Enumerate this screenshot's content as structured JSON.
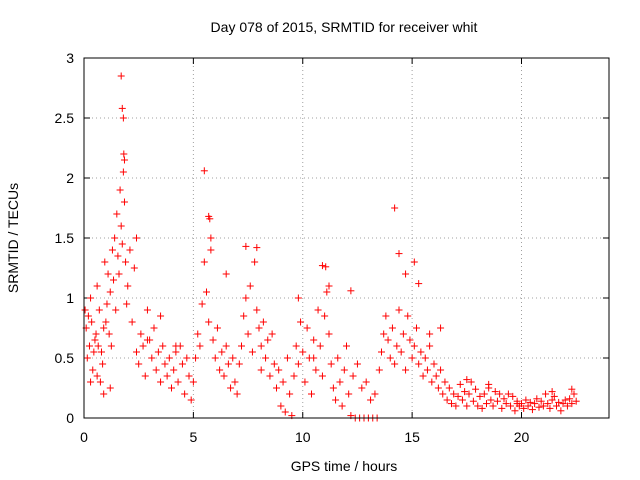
{
  "chart_data": {
    "type": "scatter",
    "title": "Day 078 of 2015, SRMTID for receiver whit",
    "xlabel": "GPS time / hours",
    "ylabel": "SRMTID / TECUs",
    "xlim": [
      0,
      24
    ],
    "ylim": [
      0,
      3
    ],
    "xticks": [
      0,
      5,
      10,
      15,
      20
    ],
    "xtick_labels": [
      "0",
      "5",
      "10",
      "15",
      "20"
    ],
    "yticks": [
      0,
      0.5,
      1,
      1.5,
      2,
      2.5,
      3
    ],
    "ytick_labels": [
      "0",
      "0.5",
      "1",
      "1.5",
      "2",
      "2.5",
      "3"
    ],
    "grid": true,
    "marker": "+",
    "color": "#ff0000",
    "series": [
      {
        "name": "SRMTID",
        "x": [
          0.05,
          0.1,
          0.15,
          0.2,
          0.25,
          0.3,
          0.35,
          0.4,
          0.45,
          0.5,
          0.55,
          0.6,
          0.65,
          0.7,
          0.75,
          0.8,
          0.85,
          0.9,
          0.95,
          1.0,
          1.05,
          1.1,
          1.15,
          1.2,
          1.25,
          1.3,
          1.35,
          1.4,
          1.45,
          1.5,
          1.55,
          1.6,
          1.65,
          1.7,
          1.75,
          1.8,
          1.85,
          1.9,
          1.95,
          2.0,
          2.1,
          2.2,
          2.3,
          2.4,
          2.5,
          2.6,
          2.7,
          2.8,
          2.9,
          3.0,
          3.1,
          3.2,
          3.3,
          3.4,
          3.5,
          3.6,
          3.7,
          3.8,
          3.9,
          4.0,
          4.1,
          4.2,
          4.3,
          4.4,
          4.5,
          4.6,
          4.7,
          4.8,
          4.9,
          5.0,
          5.1,
          5.2,
          5.3,
          5.4,
          5.5,
          5.6,
          5.7,
          5.8,
          5.9,
          6.0,
          6.1,
          6.2,
          6.3,
          6.4,
          6.5,
          6.6,
          6.7,
          6.8,
          6.9,
          7.0,
          7.1,
          7.2,
          7.3,
          7.4,
          7.5,
          7.6,
          7.7,
          7.8,
          7.9,
          8.0,
          8.1,
          8.2,
          8.3,
          8.4,
          8.5,
          8.6,
          8.7,
          8.8,
          8.9,
          9.0,
          9.1,
          9.2,
          9.3,
          9.4,
          9.5,
          9.6,
          9.7,
          9.8,
          9.9,
          10.0,
          10.1,
          10.2,
          10.3,
          10.4,
          10.5,
          10.6,
          10.7,
          10.8,
          10.9,
          11.0,
          11.1,
          11.2,
          11.3,
          11.4,
          11.5,
          11.6,
          11.7,
          11.8,
          11.9,
          12.0,
          12.1,
          12.2,
          12.3,
          12.4,
          12.5,
          12.6,
          12.7,
          12.8,
          12.9,
          13.0,
          13.1,
          13.2,
          13.3,
          13.4,
          13.5,
          13.6,
          13.7,
          13.8,
          13.9,
          14.0,
          14.1,
          14.2,
          14.3,
          14.4,
          14.5,
          14.6,
          14.7,
          14.8,
          14.9,
          15.0,
          15.1,
          15.2,
          15.3,
          15.4,
          15.5,
          15.6,
          15.7,
          15.8,
          15.9,
          16.0,
          16.1,
          16.2,
          16.3,
          16.4,
          16.5,
          16.6,
          16.7,
          16.8,
          16.9,
          17.0,
          17.1,
          17.2,
          17.3,
          17.4,
          17.5,
          17.6,
          17.7,
          17.8,
          17.9,
          18.0,
          18.1,
          18.2,
          18.3,
          18.4,
          18.5,
          18.6,
          18.7,
          18.8,
          18.9,
          19.0,
          19.1,
          19.2,
          19.3,
          19.4,
          19.5,
          19.6,
          19.7,
          19.8,
          19.9,
          20.0,
          20.1,
          20.2,
          20.3,
          20.4,
          20.5,
          20.6,
          20.7,
          20.8,
          20.9,
          21.0,
          21.1,
          21.2,
          21.3,
          21.4,
          21.5,
          21.6,
          21.7,
          21.8,
          21.9,
          22.0,
          22.1,
          22.2,
          22.3,
          22.4,
          22.5,
          0.3,
          0.6,
          0.9,
          1.2,
          1.7,
          1.75,
          1.8,
          1.82,
          1.85,
          2.4,
          2.9,
          3.5,
          4.2,
          4.8,
          5.5,
          5.7,
          5.75,
          5.8,
          6.5,
          7.4,
          7.9,
          8.1,
          9.8,
          10.5,
          10.9,
          11.05,
          11.2,
          12.2,
          14.2,
          14.4,
          14.7,
          15.1,
          15.3,
          15.8,
          16.3,
          17.5,
          18.5,
          19.8,
          21.4,
          22.3
        ],
        "y": [
          0.9,
          0.75,
          0.5,
          0.85,
          0.6,
          1.0,
          0.8,
          0.4,
          0.55,
          0.65,
          0.7,
          1.1,
          0.6,
          0.9,
          0.3,
          0.55,
          0.45,
          0.75,
          1.3,
          0.8,
          0.95,
          1.2,
          0.7,
          1.05,
          0.6,
          1.4,
          1.15,
          1.5,
          0.9,
          1.7,
          1.35,
          1.2,
          1.9,
          1.6,
          1.45,
          2.05,
          1.8,
          1.3,
          0.95,
          1.1,
          1.4,
          0.8,
          1.25,
          0.55,
          0.45,
          0.7,
          0.6,
          0.35,
          0.9,
          0.65,
          0.5,
          0.75,
          0.4,
          0.55,
          0.3,
          0.6,
          0.45,
          0.35,
          0.5,
          0.25,
          0.4,
          0.55,
          0.3,
          0.6,
          0.45,
          0.2,
          0.5,
          0.35,
          0.15,
          0.3,
          0.5,
          0.7,
          0.6,
          0.95,
          1.3,
          1.05,
          0.8,
          1.4,
          0.65,
          0.5,
          0.75,
          0.4,
          0.55,
          0.35,
          0.6,
          0.45,
          0.25,
          0.5,
          0.3,
          0.2,
          0.45,
          0.6,
          0.85,
          1.0,
          0.7,
          1.1,
          0.55,
          1.3,
          0.9,
          0.75,
          0.6,
          0.8,
          0.5,
          0.65,
          0.35,
          0.7,
          0.45,
          0.25,
          0.4,
          0.1,
          0.3,
          0.05,
          0.5,
          0.2,
          0.02,
          0.35,
          0.6,
          0.45,
          0.8,
          0.55,
          0.3,
          0.75,
          0.5,
          0.2,
          0.65,
          0.4,
          0.9,
          0.6,
          0.35,
          0.85,
          1.05,
          0.7,
          0.45,
          0.25,
          0.15,
          0.5,
          0.3,
          0.1,
          0.4,
          0.6,
          0.2,
          0.02,
          0.35,
          0.0,
          0.45,
          0.0,
          0.25,
          0.0,
          0.3,
          0.0,
          0.15,
          0.0,
          0.2,
          0.0,
          0.4,
          0.55,
          0.7,
          0.85,
          0.65,
          0.5,
          0.75,
          0.45,
          0.6,
          0.9,
          0.55,
          0.7,
          0.4,
          0.85,
          0.65,
          0.5,
          0.6,
          0.75,
          0.45,
          0.55,
          0.35,
          0.5,
          0.4,
          0.6,
          0.3,
          0.45,
          0.35,
          0.25,
          0.4,
          0.2,
          0.3,
          0.15,
          0.25,
          0.12,
          0.2,
          0.1,
          0.18,
          0.28,
          0.15,
          0.22,
          0.1,
          0.2,
          0.3,
          0.14,
          0.24,
          0.1,
          0.18,
          0.08,
          0.2,
          0.12,
          0.25,
          0.15,
          0.1,
          0.22,
          0.14,
          0.2,
          0.08,
          0.16,
          0.12,
          0.2,
          0.1,
          0.18,
          0.06,
          0.14,
          0.1,
          0.12,
          0.08,
          0.15,
          0.1,
          0.13,
          0.07,
          0.12,
          0.16,
          0.09,
          0.14,
          0.1,
          0.2,
          0.12,
          0.08,
          0.15,
          0.18,
          0.1,
          0.13,
          0.06,
          0.12,
          0.15,
          0.1,
          0.16,
          0.12,
          0.2,
          0.14,
          0.3,
          0.35,
          0.2,
          0.25,
          2.85,
          2.58,
          2.5,
          2.2,
          2.15,
          1.5,
          0.65,
          0.85,
          0.6,
          0.35,
          2.06,
          1.68,
          1.66,
          1.5,
          1.2,
          1.43,
          1.42,
          0.4,
          1.0,
          0.5,
          1.27,
          1.26,
          1.1,
          1.06,
          1.75,
          1.37,
          1.2,
          1.3,
          1.12,
          0.7,
          0.75,
          0.32,
          0.28,
          0.12,
          0.22,
          0.24
        ]
      }
    ]
  }
}
